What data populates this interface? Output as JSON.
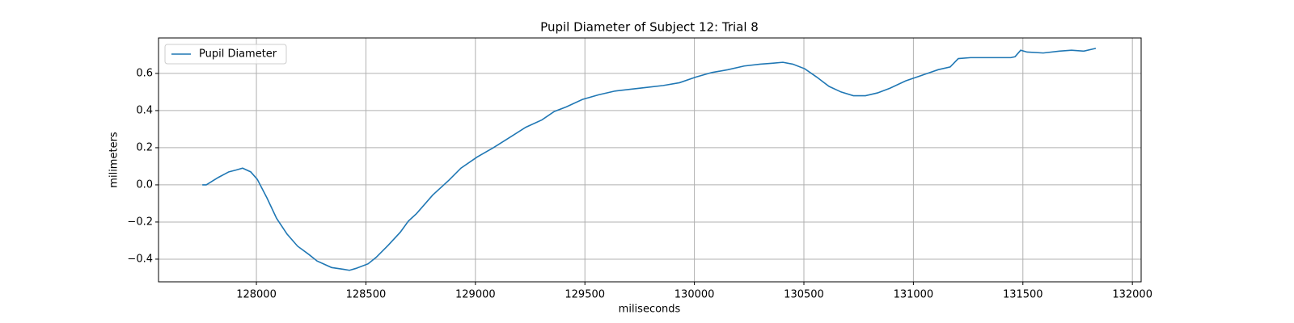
{
  "chart_data": {
    "type": "line",
    "title": "Pupil Diameter of Subject 12: Trial 8",
    "xlabel": "miliseconds",
    "ylabel": "milimeters",
    "legend": "upper left",
    "grid": true,
    "xlim": [
      127553,
      132040
    ],
    "ylim": [
      -0.522,
      0.791
    ],
    "xticks": [
      128000,
      128500,
      129000,
      129500,
      130000,
      130500,
      131000,
      131500,
      132000
    ],
    "yticks": [
      {
        "value": -0.4,
        "label": "−0.4"
      },
      {
        "value": -0.2,
        "label": "−0.2"
      },
      {
        "value": 0,
        "label": "0.0"
      },
      0.2,
      0.4,
      0.6
    ],
    "x": [
      127753,
      127771,
      127826,
      127874,
      127908,
      127937,
      127974,
      128004,
      128048,
      128092,
      128140,
      128188,
      128240,
      128277,
      128343,
      128399,
      128425,
      128454,
      128510,
      128547,
      128602,
      128657,
      128694,
      128731,
      128805,
      128879,
      128934,
      129008,
      129082,
      129156,
      129230,
      129304,
      129360,
      129415,
      129489,
      129563,
      129637,
      129711,
      129784,
      129858,
      129932,
      130006,
      130080,
      130153,
      130227,
      130301,
      130356,
      130404,
      130449,
      130504,
      130559,
      130615,
      130670,
      130726,
      130781,
      130836,
      130892,
      130965,
      131039,
      131113,
      131168,
      131205,
      131261,
      131445,
      131464,
      131490,
      131519,
      131593,
      131667,
      131722,
      131778,
      131833
    ],
    "series": [
      {
        "name": "Pupil Diameter",
        "color": "#1f77b4",
        "values": [
          0,
          0,
          0.04,
          0.07,
          0.08,
          0.09,
          0.07,
          0.03,
          -0.07,
          -0.18,
          -0.265,
          -0.33,
          -0.375,
          -0.41,
          -0.445,
          -0.455,
          -0.46,
          -0.45,
          -0.425,
          -0.39,
          -0.325,
          -0.255,
          -0.195,
          -0.155,
          -0.055,
          0.025,
          0.09,
          0.15,
          0.2,
          0.255,
          0.31,
          0.35,
          0.395,
          0.42,
          0.46,
          0.485,
          0.505,
          0.515,
          0.525,
          0.535,
          0.55,
          0.58,
          0.605,
          0.62,
          0.64,
          0.65,
          0.655,
          0.66,
          0.65,
          0.625,
          0.58,
          0.53,
          0.5,
          0.48,
          0.48,
          0.495,
          0.52,
          0.56,
          0.59,
          0.62,
          0.635,
          0.68,
          0.685,
          0.685,
          0.69,
          0.725,
          0.715,
          0.71,
          0.72,
          0.725,
          0.72,
          0.735
        ]
      }
    ]
  }
}
